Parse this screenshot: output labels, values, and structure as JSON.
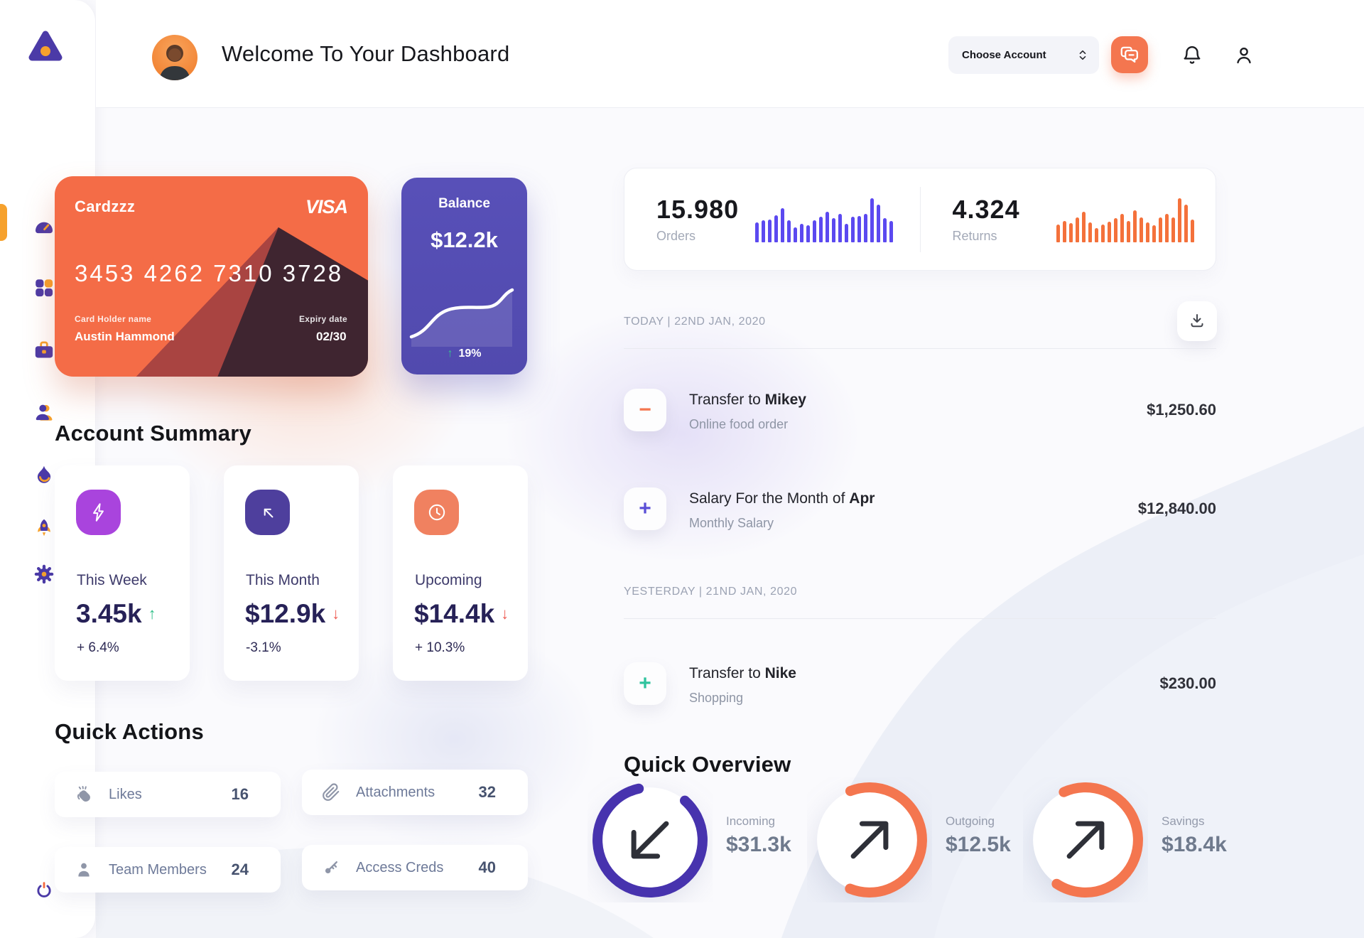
{
  "header": {
    "title": "Welcome To Your Dashboard",
    "account_dropdown": "Choose Account"
  },
  "sidebar": {
    "items": [
      {
        "name": "dashboard",
        "icon": "speedometer-icon",
        "active": true
      },
      {
        "name": "apps",
        "icon": "grid-icon",
        "active": false
      },
      {
        "name": "work",
        "icon": "briefcase-icon",
        "active": false
      },
      {
        "name": "contacts",
        "icon": "user-icon",
        "active": false
      },
      {
        "name": "trending",
        "icon": "flame-icon",
        "active": false
      },
      {
        "name": "boost",
        "icon": "rocket-icon",
        "active": false
      },
      {
        "name": "settings",
        "icon": "gear-icon",
        "active": false
      }
    ],
    "logout_icon": "power-icon"
  },
  "credit_card": {
    "name": "Cardzzz",
    "brand": "VISA",
    "number": "3453 4262 7310 3728",
    "holder_label": "Card Holder name",
    "holder": "Austin Hammond",
    "expiry_label": "Expiry date",
    "expiry": "02/30"
  },
  "balance": {
    "label": "Balance",
    "value": "$12.2k",
    "delta": "19%",
    "delta_color": "#35C08E"
  },
  "stats": {
    "orders": {
      "value": "15.980",
      "label": "Orders",
      "color": "#5B49F0",
      "bars": [
        45,
        50,
        52,
        62,
        78,
        50,
        34,
        42,
        38,
        50,
        58,
        70,
        55,
        65,
        42,
        58,
        60,
        65,
        100,
        85,
        55,
        48
      ]
    },
    "returns": {
      "value": "4.324",
      "label": "Returns",
      "color": "#F4713B",
      "bars": [
        40,
        48,
        44,
        56,
        70,
        45,
        33,
        40,
        46,
        55,
        64,
        48,
        72,
        57,
        45,
        38,
        56,
        64,
        56,
        100,
        86,
        52
      ]
    }
  },
  "transactions": {
    "groups": [
      {
        "date": "TODAY | 22ND JAN, 2020",
        "rows": [
          {
            "prefix": "Transfer to ",
            "bold": "Mikey",
            "sub": "Online food order",
            "amount": "$1,250.60",
            "glyph": "−",
            "glyph_color": "#F4764F"
          },
          {
            "prefix": "Salary For the Month of ",
            "bold": "Apr",
            "sub": "Monthly Salary",
            "amount": "$12,840.00",
            "glyph": "+",
            "glyph_color": "#5A4FD6"
          }
        ]
      },
      {
        "date": "YESTERDAY | 21ND JAN, 2020",
        "rows": [
          {
            "prefix": "Transfer to ",
            "bold": "Nike",
            "sub": "Shopping",
            "amount": "$230.00",
            "glyph": "+",
            "glyph_color": "#2FC39E"
          }
        ]
      }
    ]
  },
  "summary": {
    "heading": "Account Summary",
    "cards": [
      {
        "label": "This Week",
        "value": "3.45k",
        "delta": "+ 6.4%",
        "trend": "up",
        "icon": "lightning-icon",
        "icon_bg": "#A944DD"
      },
      {
        "label": "This Month",
        "value": "$12.9k",
        "delta": "-3.1%",
        "trend": "down",
        "icon": "diag-arrow-icon",
        "icon_bg": "#4E3F9D"
      },
      {
        "label": "Upcoming",
        "value": "$14.4k",
        "delta": "+ 10.3%",
        "trend": "down",
        "icon": "clock-icon",
        "icon_bg": "#F08160"
      }
    ],
    "trend_up_color": "#2DBE87",
    "trend_down_color": "#EE5A52"
  },
  "quick_actions": {
    "heading": "Quick Actions",
    "items": [
      {
        "label": "Likes",
        "count": "16",
        "icon": "clap-icon"
      },
      {
        "label": "Attachments",
        "count": "32",
        "icon": "paperclip-icon"
      },
      {
        "label": "Team Members",
        "count": "24",
        "icon": "member-icon"
      },
      {
        "label": "Access Creds",
        "count": "40",
        "icon": "key-icon"
      }
    ]
  },
  "overview": {
    "heading": "Quick Overview",
    "items": [
      {
        "label": "Incoming",
        "value": "$31.3k",
        "pct": 85,
        "rotate": -48,
        "color": "#4733AE",
        "arrow": "down-left"
      },
      {
        "label": "Outgoing",
        "value": "$12.5k",
        "pct": 62,
        "rotate": -111,
        "color": "#F4764F",
        "arrow": "up-right"
      },
      {
        "label": "Savings",
        "value": "$18.4k",
        "pct": 66,
        "rotate": -114,
        "color": "#F4764F",
        "arrow": "up-right"
      }
    ]
  }
}
